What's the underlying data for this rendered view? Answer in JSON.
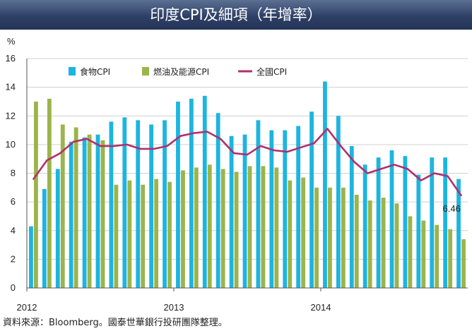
{
  "title": "印度CPI及細項（年增率）",
  "source": "資料來源：Bloomberg。國泰世華銀行投研團隊整理。",
  "chart_data": {
    "type": "bar",
    "y_unit": "%",
    "ylim": [
      0,
      16
    ],
    "yticks": [
      0,
      2,
      4,
      6,
      8,
      10,
      12,
      14,
      16
    ],
    "grid": true,
    "x_labels": [
      {
        "label": "2012",
        "index": 0
      },
      {
        "label": "2013",
        "index": 11
      },
      {
        "label": "2014",
        "index": 22
      }
    ],
    "months": [
      "2012-01",
      "2012-02",
      "2012-03",
      "2012-04",
      "2012-05",
      "2012-06",
      "2012-07",
      "2012-08",
      "2012-09",
      "2012-10",
      "2012-11",
      "2012-12",
      "2013-01",
      "2013-02",
      "2013-03",
      "2013-04",
      "2013-05",
      "2013-06",
      "2013-07",
      "2013-08",
      "2013-09",
      "2013-10",
      "2013-11",
      "2013-12",
      "2014-01",
      "2014-02",
      "2014-03",
      "2014-04",
      "2014-05",
      "2014-06",
      "2014-07",
      "2014-08",
      "2014-09"
    ],
    "legend_position": "top",
    "series": [
      {
        "name": "食物CPI",
        "kind": "bar",
        "color": "#1cb5e0",
        "values": [
          4.3,
          6.9,
          8.3,
          10.2,
          10.5,
          10.7,
          11.6,
          11.9,
          11.7,
          11.4,
          11.7,
          13.0,
          13.2,
          13.4,
          12.2,
          10.6,
          10.7,
          11.7,
          11.0,
          11.0,
          11.3,
          12.3,
          14.4,
          12.0,
          9.9,
          8.6,
          9.1,
          9.6,
          9.2,
          7.9,
          9.1,
          9.1,
          7.6
        ]
      },
      {
        "name": "燃油及能源CPI",
        "kind": "bar",
        "color": "#9bb44b",
        "values": [
          13.0,
          13.2,
          11.4,
          11.2,
          10.7,
          10.3,
          7.2,
          7.5,
          7.2,
          7.6,
          7.4,
          8.2,
          8.4,
          8.6,
          8.3,
          8.1,
          8.5,
          8.5,
          8.4,
          7.5,
          7.7,
          7.0,
          7.0,
          7.0,
          6.5,
          6.1,
          6.3,
          5.9,
          5.0,
          4.7,
          4.4,
          4.1,
          3.4
        ]
      },
      {
        "name": "全國CPI",
        "kind": "line",
        "color": "#b0306a",
        "values": [
          7.6,
          8.9,
          9.4,
          10.2,
          10.4,
          9.9,
          9.9,
          10.0,
          9.7,
          9.7,
          9.9,
          10.6,
          10.8,
          10.9,
          10.4,
          9.4,
          9.3,
          9.9,
          9.6,
          9.5,
          9.8,
          10.1,
          11.1,
          9.9,
          8.8,
          8.0,
          8.3,
          8.6,
          8.3,
          7.5,
          8.0,
          7.8,
          6.46
        ]
      }
    ],
    "annotation": {
      "text": "6.46",
      "series": "全國CPI",
      "index": 32
    }
  }
}
